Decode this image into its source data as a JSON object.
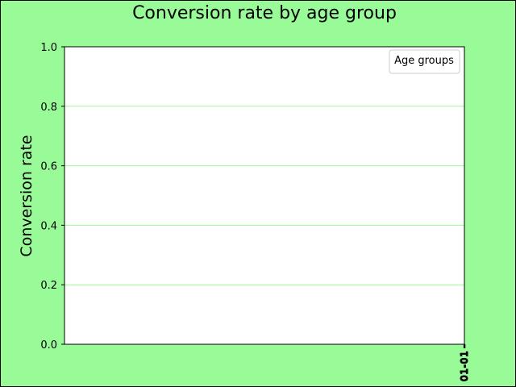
{
  "chart_data": {
    "type": "line",
    "title": "Conversion rate by age group",
    "xlabel": "",
    "ylabel": "Conversion rate",
    "ylim": [
      0,
      1.0
    ],
    "yticks": [
      "0.0",
      "0.2",
      "0.4",
      "0.6",
      "0.8",
      "1.0"
    ],
    "xtick_labels": [
      "01-01",
      "01-01",
      "01-01"
    ],
    "grid": "y",
    "legend": {
      "title": "Age groups",
      "placement": "top-right",
      "entries": []
    },
    "series": [],
    "colors": {
      "figure_background": "#98fb98",
      "plot_background": "#ffffff",
      "grid": "#98fb98",
      "frame": "#000000"
    }
  }
}
